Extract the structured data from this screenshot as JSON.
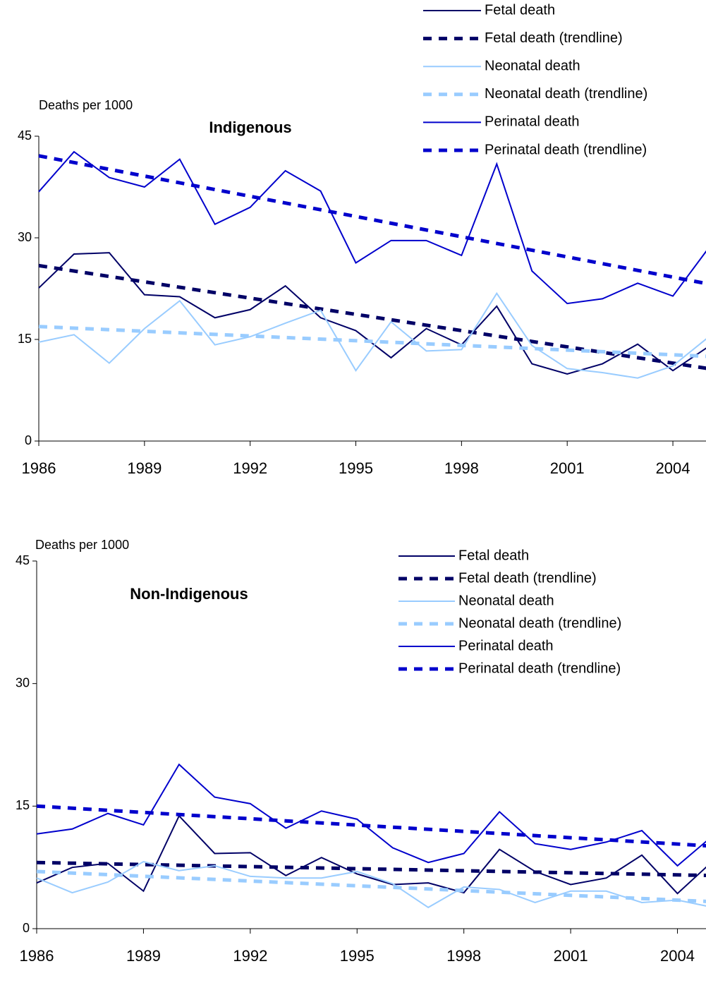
{
  "chart_data": [
    {
      "type": "line",
      "title": "Indigenous",
      "y_label": "Deaths per 1000",
      "x": [
        1986,
        1987,
        1988,
        1989,
        1990,
        1991,
        1992,
        1993,
        1994,
        1995,
        1996,
        1997,
        1998,
        1999,
        2000,
        2001,
        2002,
        2003,
        2004,
        2005
      ],
      "xlim": [
        1986,
        2005
      ],
      "xticks": [
        1986,
        1989,
        1992,
        1995,
        1998,
        2001,
        2004
      ],
      "ylim": [
        0,
        45
      ],
      "yticks": [
        0,
        15,
        30,
        45
      ],
      "series": [
        {
          "name": "Fetal death",
          "color": "#000066",
          "style": "solid",
          "values": [
            22.6,
            27.6,
            27.8,
            21.6,
            21.3,
            18.2,
            19.4,
            22.9,
            18.2,
            16.3,
            12.3,
            16.6,
            14.2,
            19.9,
            11.4,
            9.9,
            11.4,
            14.3,
            10.4,
            13.9
          ]
        },
        {
          "name": "Fetal death (trendline)",
          "color": "#000066",
          "style": "dashed",
          "x": [
            1986,
            2005
          ],
          "values": [
            25.9,
            10.7
          ]
        },
        {
          "name": "Neonatal death",
          "color": "#99ccff",
          "style": "solid",
          "values": [
            14.6,
            15.7,
            11.5,
            16.6,
            20.7,
            14.2,
            15.4,
            17.4,
            19.3,
            10.4,
            17.6,
            13.3,
            13.5,
            21.8,
            14.1,
            10.7,
            10.1,
            9.3,
            11.1,
            15.3
          ]
        },
        {
          "name": "Neonatal death (trendline)",
          "color": "#99ccff",
          "style": "dashed",
          "x": [
            1986,
            2005
          ],
          "values": [
            16.9,
            12.5
          ]
        },
        {
          "name": "Perinatal death",
          "color": "#0000cc",
          "style": "solid",
          "values": [
            36.8,
            42.7,
            38.9,
            37.5,
            41.6,
            32.0,
            34.5,
            39.9,
            36.9,
            26.3,
            29.6,
            29.6,
            27.4,
            40.9,
            25.1,
            20.3,
            21.0,
            23.3,
            21.4,
            28.4
          ]
        },
        {
          "name": "Perinatal death (trendline)",
          "color": "#0000cc",
          "style": "dashed",
          "x": [
            1986,
            2005
          ],
          "values": [
            42.1,
            23.2
          ]
        }
      ]
    },
    {
      "type": "line",
      "title": "Non-Indigenous",
      "y_label": "Deaths per 1000",
      "x": [
        1986,
        1987,
        1988,
        1989,
        1990,
        1991,
        1992,
        1993,
        1994,
        1995,
        1996,
        1997,
        1998,
        1999,
        2000,
        2001,
        2002,
        2003,
        2004,
        2005
      ],
      "xlim": [
        1986,
        2005
      ],
      "xticks": [
        1986,
        1989,
        1992,
        1995,
        1998,
        2001,
        2004
      ],
      "ylim": [
        0,
        45
      ],
      "yticks": [
        0,
        15,
        30,
        45
      ],
      "series": [
        {
          "name": "Fetal death",
          "color": "#000066",
          "style": "solid",
          "values": [
            5.6,
            7.5,
            8.0,
            4.6,
            13.8,
            9.2,
            9.3,
            6.5,
            8.7,
            6.7,
            5.4,
            5.6,
            4.4,
            9.7,
            7.0,
            5.4,
            6.2,
            9.0,
            4.3,
            8.3
          ]
        },
        {
          "name": "Fetal death (trendline)",
          "color": "#000066",
          "style": "dashed",
          "x": [
            1986,
            2005
          ],
          "values": [
            8.1,
            6.5
          ]
        },
        {
          "name": "Neonatal death",
          "color": "#99ccff",
          "style": "solid",
          "values": [
            6.2,
            4.4,
            5.7,
            8.2,
            7.1,
            7.7,
            6.4,
            6.2,
            6.2,
            7.0,
            5.5,
            2.6,
            5.1,
            4.8,
            3.2,
            4.6,
            4.6,
            3.2,
            3.5,
            2.6
          ]
        },
        {
          "name": "Neonatal death (trendline)",
          "color": "#99ccff",
          "style": "dashed",
          "x": [
            1986,
            2005
          ],
          "values": [
            7.0,
            3.3
          ]
        },
        {
          "name": "Perinatal death",
          "color": "#0000cc",
          "style": "solid",
          "values": [
            11.6,
            12.2,
            14.1,
            12.7,
            20.1,
            16.1,
            15.3,
            12.3,
            14.4,
            13.4,
            9.9,
            8.1,
            9.2,
            14.3,
            10.4,
            9.7,
            10.6,
            12.0,
            7.7,
            11.4
          ]
        },
        {
          "name": "Perinatal death (trendline)",
          "color": "#0000cc",
          "style": "dashed",
          "x": [
            1986,
            2005
          ],
          "values": [
            15.0,
            10.1
          ]
        }
      ]
    }
  ]
}
